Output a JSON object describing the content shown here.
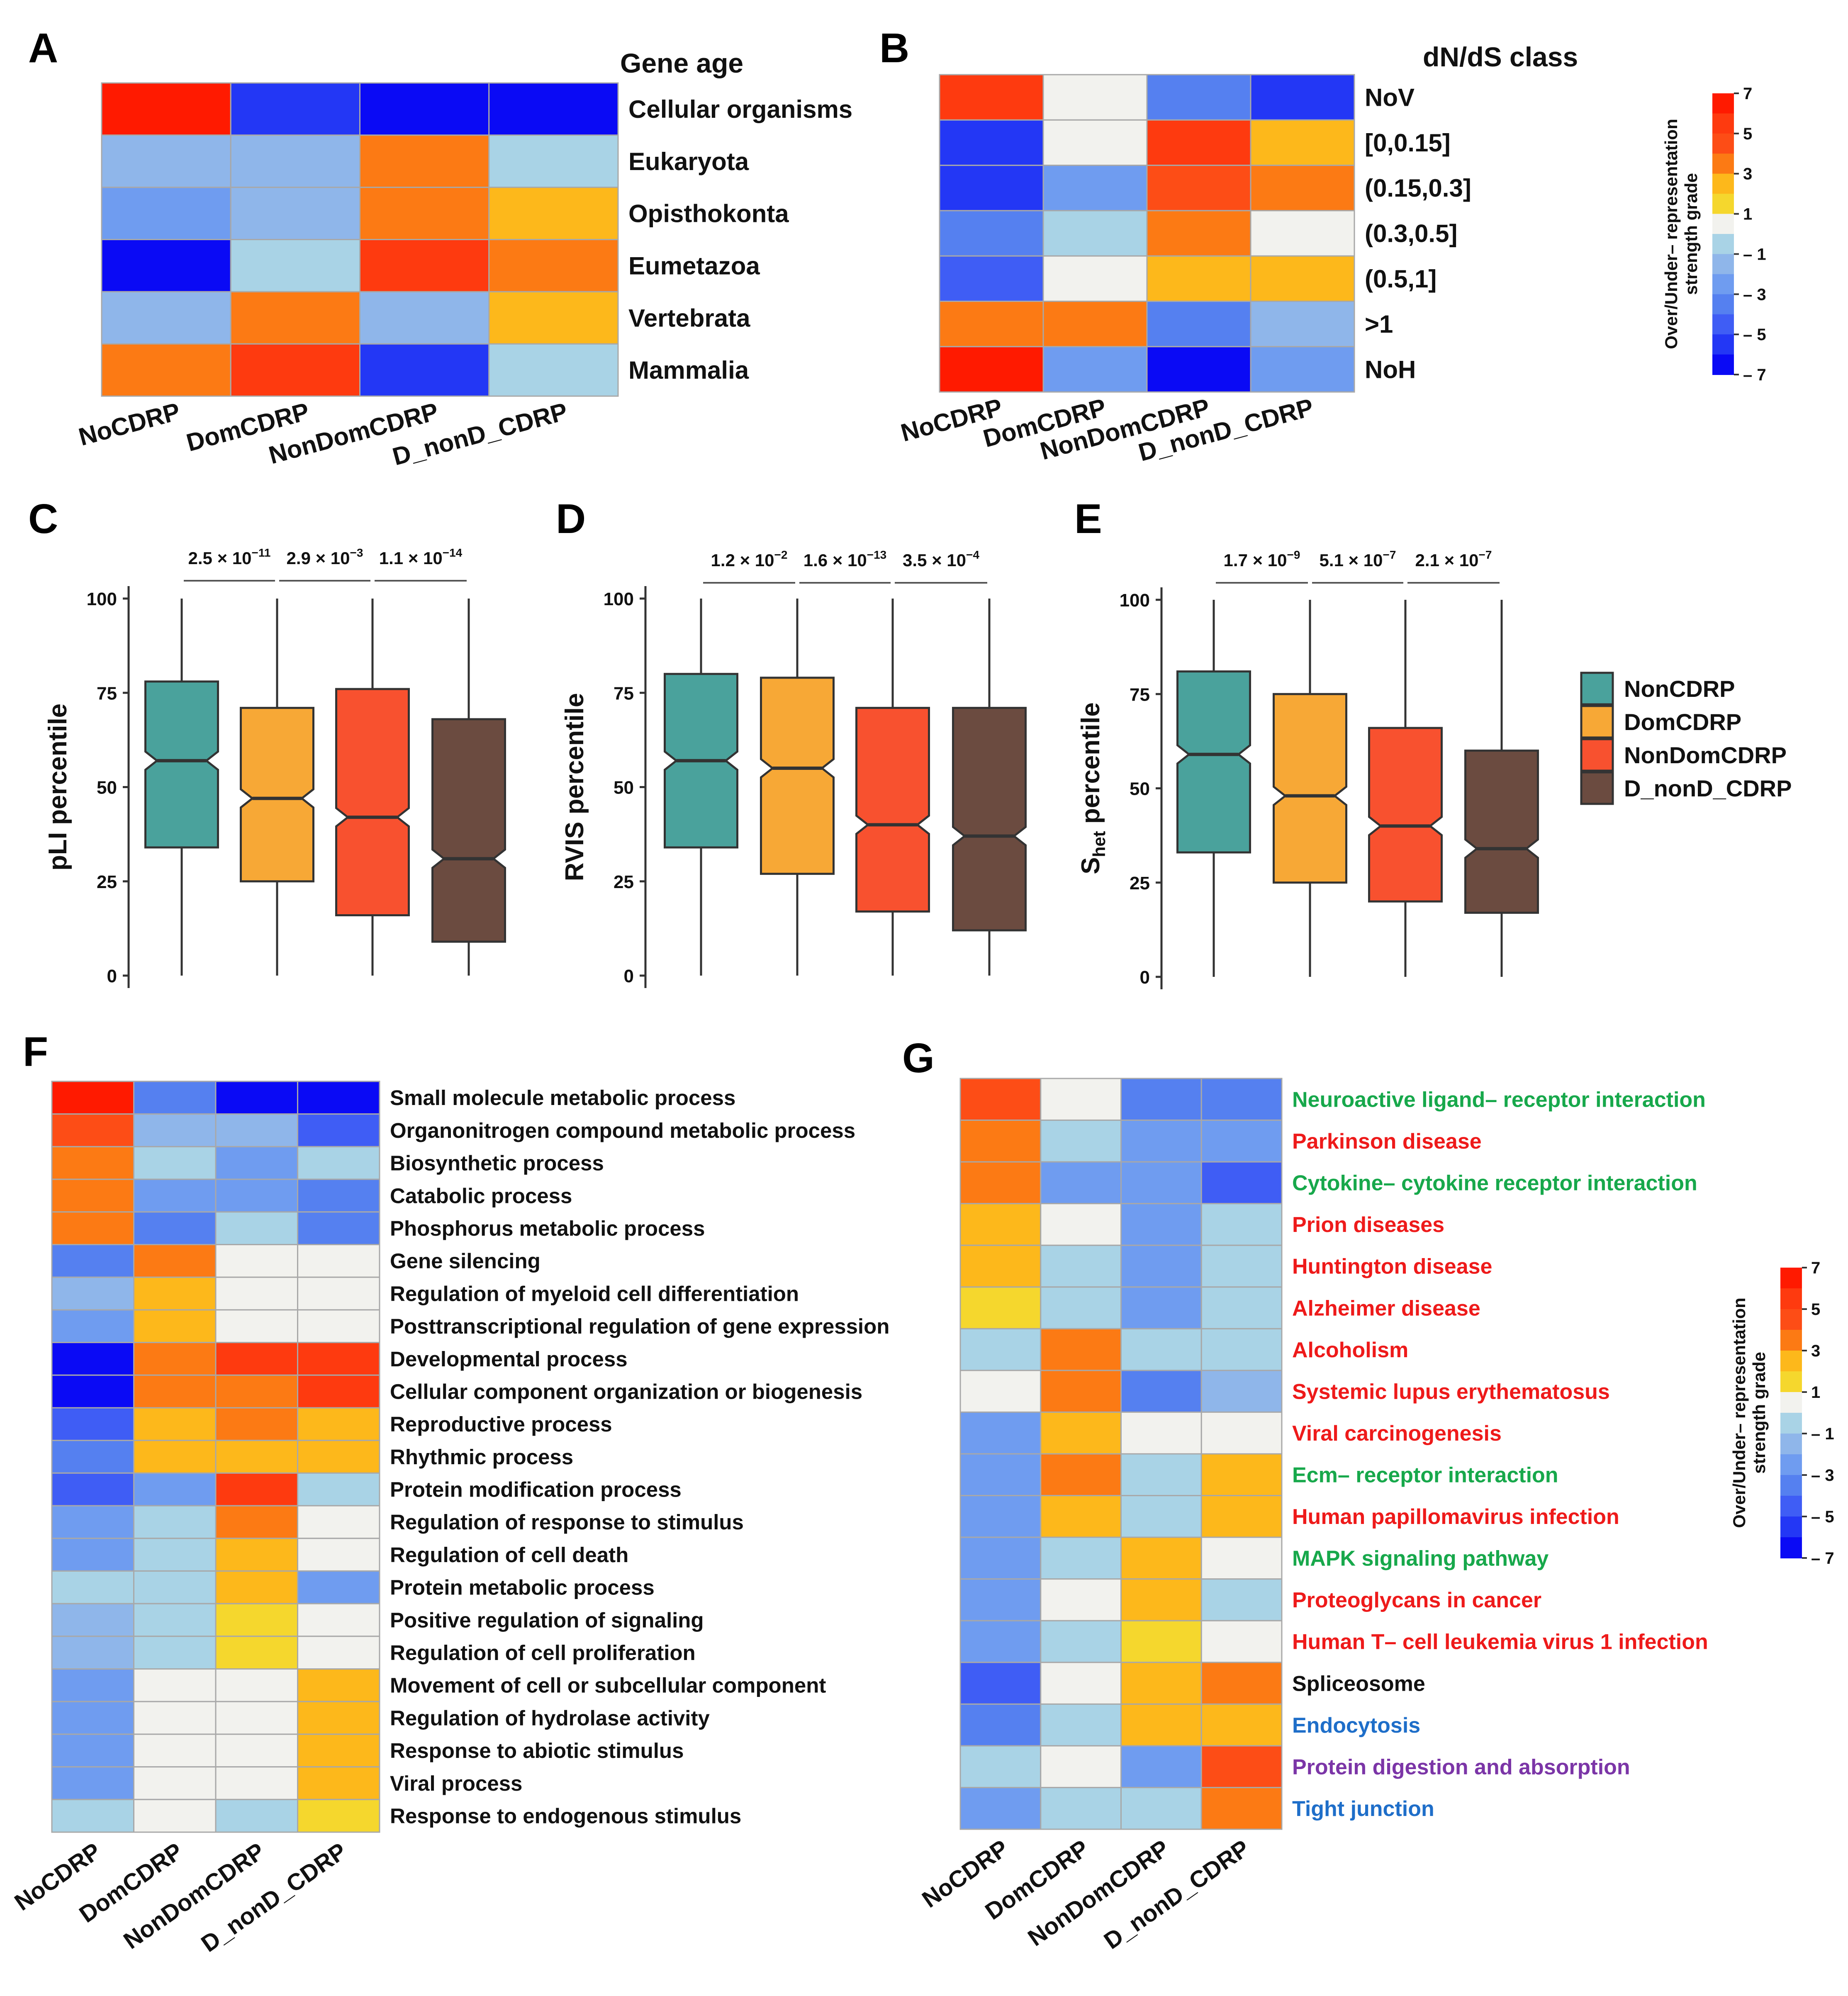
{
  "colors": {
    "grades": {
      "7": "#ff1a00",
      "6": "#fe3a0f",
      "5": "#fd4d16",
      "4": "#fc7a14",
      "3": "#fdb81b",
      "2": "#f5d72d",
      "1": "#f2f2ee",
      "-1": "#a9d3e6",
      "-2": "#8fb6ea",
      "-3": "#6f9cf0",
      "-4": "#5580f0",
      "-5": "#3f5df5",
      "-6": "#2337f5",
      "-7": "#0a0af5"
    },
    "cell_border": "#a8a8a8",
    "box_fills": [
      "#4aa29c",
      "#f7a836",
      "#f8512f",
      "#6b4b40"
    ],
    "pathway": {
      "green": "#17a84b",
      "red": "#ee1a1a",
      "black": "#111111",
      "blue": "#1e6ec9",
      "purple": "#7b35a7"
    }
  },
  "colorbar": {
    "title_lines": [
      "Over/Under– representation",
      "strength grade"
    ],
    "ticks": [
      "7",
      "5",
      "3",
      "1",
      "– 1",
      "– 3",
      "– 5",
      "– 7"
    ]
  },
  "chart_data": [
    {
      "panel": "A",
      "type": "heatmap",
      "title": "Gene age",
      "columns": [
        "NoCDRP",
        "DomCDRP",
        "NonDomCDRP",
        "D_nonD_CDRP"
      ],
      "rows": [
        "Cellular organisms",
        "Eukaryota",
        "Opisthokonta",
        "Eumetazoa",
        "Vertebrata",
        "Mammalia"
      ],
      "values": [
        [
          7,
          -6,
          -7,
          -7
        ],
        [
          -2,
          -2,
          4,
          -1
        ],
        [
          -3,
          -2,
          4,
          3
        ],
        [
          -7,
          -1,
          6,
          4
        ],
        [
          -2,
          4,
          -2,
          3
        ],
        [
          4,
          6,
          -6,
          -1
        ]
      ]
    },
    {
      "panel": "B",
      "type": "heatmap",
      "title": "dN/dS class",
      "columns": [
        "NoCDRP",
        "DomCDRP",
        "NonDomCDRP",
        "D_nonD_CDRP"
      ],
      "rows": [
        "NoV",
        "[0,0.15]",
        "(0.15,0.3]",
        "(0.3,0.5]",
        "(0.5,1]",
        ">1",
        "NoH"
      ],
      "values": [
        [
          6,
          1,
          -4,
          -6
        ],
        [
          -6,
          1,
          6,
          3
        ],
        [
          -6,
          -3,
          5,
          4
        ],
        [
          -4,
          -1,
          4,
          1
        ],
        [
          -5,
          1,
          3,
          3
        ],
        [
          4,
          4,
          -4,
          -2
        ],
        [
          7,
          -3,
          -7,
          -3
        ]
      ]
    },
    {
      "panel": "C",
      "type": "boxplot",
      "ylabel": "pLI percentile",
      "yticks": [
        "0",
        "25",
        "50",
        "75",
        "100"
      ],
      "ylim": [
        0,
        100
      ],
      "pvalues": [
        {
          "mantissa": "2.5 × 10",
          "exponent": "−11"
        },
        {
          "mantissa": "2.9 × 10",
          "exponent": "−3"
        },
        {
          "mantissa": "1.1 × 10",
          "exponent": "−14"
        }
      ],
      "boxes": [
        {
          "name": "NonCDRP",
          "min": 0,
          "q1": 34,
          "median": 57,
          "q3": 78,
          "max": 100
        },
        {
          "name": "DomCDRP",
          "min": 0,
          "q1": 25,
          "median": 47,
          "q3": 71,
          "max": 100
        },
        {
          "name": "NonDomCDRP",
          "min": 0,
          "q1": 16,
          "median": 42,
          "q3": 76,
          "max": 100
        },
        {
          "name": "D_nonD_CDRP",
          "min": 0,
          "q1": 9,
          "median": 31,
          "q3": 68,
          "max": 100
        }
      ]
    },
    {
      "panel": "D",
      "type": "boxplot",
      "ylabel": "RVIS percentile",
      "yticks": [
        "0",
        "25",
        "50",
        "75",
        "100"
      ],
      "ylim": [
        0,
        100
      ],
      "pvalues": [
        {
          "mantissa": "1.2 × 10",
          "exponent": "−2"
        },
        {
          "mantissa": "1.6 × 10",
          "exponent": "−13"
        },
        {
          "mantissa": "3.5 × 10",
          "exponent": "−4"
        }
      ],
      "boxes": [
        {
          "name": "NonCDRP",
          "min": 0,
          "q1": 34,
          "median": 57,
          "q3": 80,
          "max": 100
        },
        {
          "name": "DomCDRP",
          "min": 0,
          "q1": 27,
          "median": 55,
          "q3": 79,
          "max": 100
        },
        {
          "name": "NonDomCDRP",
          "min": 0,
          "q1": 17,
          "median": 40,
          "q3": 71,
          "max": 100
        },
        {
          "name": "D_nonD_CDRP",
          "min": 0,
          "q1": 12,
          "median": 37,
          "q3": 71,
          "max": 100
        }
      ]
    },
    {
      "panel": "E",
      "type": "boxplot",
      "ylabel_main": "S",
      "ylabel_sub": "het",
      "ylabel_rest": " percentile",
      "yticks": [
        "0",
        "25",
        "50",
        "75",
        "100"
      ],
      "ylim": [
        0,
        100
      ],
      "pvalues": [
        {
          "mantissa": "1.7 × 10",
          "exponent": "−9"
        },
        {
          "mantissa": "5.1 × 10",
          "exponent": "−7"
        },
        {
          "mantissa": "2.1 × 10",
          "exponent": "−7"
        }
      ],
      "boxes": [
        {
          "name": "NonCDRP",
          "min": 0,
          "q1": 33,
          "median": 59,
          "q3": 81,
          "max": 100
        },
        {
          "name": "DomCDRP",
          "min": 0,
          "q1": 25,
          "median": 48,
          "q3": 75,
          "max": 100
        },
        {
          "name": "NonDomCDRP",
          "min": 0,
          "q1": 20,
          "median": 40,
          "q3": 66,
          "max": 100
        },
        {
          "name": "D_nonD_CDRP",
          "min": 0,
          "q1": 17,
          "median": 34,
          "q3": 60,
          "max": 100
        }
      ],
      "legend": [
        "NonCDRP",
        "DomCDRP",
        "NonDomCDRP",
        "D_nonD_CDRP"
      ]
    },
    {
      "panel": "F",
      "type": "heatmap",
      "columns": [
        "NoCDRP",
        "DomCDRP",
        "NonDomCDRP",
        "D_nonD_CDRP"
      ],
      "rows": [
        "Small molecule metabolic process",
        "Organonitrogen compound metabolic process",
        "Biosynthetic process",
        "Catabolic process",
        "Phosphorus metabolic process",
        "Gene silencing",
        "Regulation of myeloid cell differentiation",
        "Posttranscriptional regulation of gene expression",
        "Developmental process",
        "Cellular component organization or biogenesis",
        "Reproductive process",
        "Rhythmic process",
        "Protein modification process",
        "Regulation of response to stimulus",
        "Regulation of cell death",
        "Protein metabolic process",
        "Positive regulation of signaling",
        "Regulation of cell proliferation",
        "Movement of cell or subcellular component",
        "Regulation of hydrolase activity",
        "Response to abiotic stimulus",
        "Viral process",
        "Response to endogenous stimulus"
      ],
      "values": [
        [
          7,
          -4,
          -7,
          -7
        ],
        [
          5,
          -2,
          -2,
          -5
        ],
        [
          4,
          -1,
          -3,
          -1
        ],
        [
          4,
          -3,
          -3,
          -4
        ],
        [
          4,
          -4,
          -1,
          -4
        ],
        [
          -4,
          4,
          1,
          1
        ],
        [
          -2,
          3,
          1,
          1
        ],
        [
          -3,
          3,
          1,
          1
        ],
        [
          -7,
          4,
          6,
          6
        ],
        [
          -7,
          4,
          4,
          6
        ],
        [
          -5,
          3,
          4,
          3
        ],
        [
          -4,
          3,
          3,
          3
        ],
        [
          -5,
          -3,
          6,
          -1
        ],
        [
          -3,
          -1,
          4,
          1
        ],
        [
          -3,
          -1,
          3,
          1
        ],
        [
          -1,
          -1,
          3,
          -3
        ],
        [
          -2,
          -1,
          2,
          1
        ],
        [
          -2,
          -1,
          2,
          1
        ],
        [
          -3,
          1,
          1,
          3
        ],
        [
          -3,
          1,
          1,
          3
        ],
        [
          -3,
          1,
          1,
          3
        ],
        [
          -3,
          1,
          1,
          3
        ],
        [
          -1,
          1,
          -1,
          2
        ]
      ]
    },
    {
      "panel": "G",
      "type": "heatmap",
      "columns": [
        "NoCDRP",
        "DomCDRP",
        "NonDomCDRP",
        "D_nonD_CDRP"
      ],
      "rows": [
        {
          "label": "Neuroactive ligand– receptor interaction",
          "color": "green"
        },
        {
          "label": "Parkinson disease",
          "color": "red"
        },
        {
          "label": "Cytokine– cytokine receptor interaction",
          "color": "green"
        },
        {
          "label": "Prion diseases",
          "color": "red"
        },
        {
          "label": "Huntington disease",
          "color": "red"
        },
        {
          "label": "Alzheimer disease",
          "color": "red"
        },
        {
          "label": "Alcoholism",
          "color": "red"
        },
        {
          "label": "Systemic lupus erythematosus",
          "color": "red"
        },
        {
          "label": "Viral carcinogenesis",
          "color": "red"
        },
        {
          "label": "Ecm– receptor interaction",
          "color": "green"
        },
        {
          "label": "Human papillomavirus infection",
          "color": "red"
        },
        {
          "label": "MAPK signaling pathway",
          "color": "green"
        },
        {
          "label": "Proteoglycans in cancer",
          "color": "red"
        },
        {
          "label": "Human T– cell leukemia virus 1 infection",
          "color": "red"
        },
        {
          "label": "Spliceosome",
          "color": "black"
        },
        {
          "label": "Endocytosis",
          "color": "blue"
        },
        {
          "label": "Protein digestion and absorption",
          "color": "purple"
        },
        {
          "label": "Tight junction",
          "color": "blue"
        }
      ],
      "values": [
        [
          5,
          1,
          -4,
          -4
        ],
        [
          4,
          -1,
          -3,
          -3
        ],
        [
          4,
          -3,
          -3,
          -5
        ],
        [
          3,
          1,
          -3,
          -1
        ],
        [
          3,
          -1,
          -3,
          -1
        ],
        [
          2,
          -1,
          -3,
          -1
        ],
        [
          -1,
          4,
          -1,
          -1
        ],
        [
          1,
          4,
          -4,
          -2
        ],
        [
          -3,
          3,
          1,
          1
        ],
        [
          -3,
          4,
          -1,
          3
        ],
        [
          -3,
          3,
          -1,
          3
        ],
        [
          -3,
          -1,
          3,
          1
        ],
        [
          -3,
          1,
          3,
          -1
        ],
        [
          -3,
          -1,
          2,
          1
        ],
        [
          -5,
          1,
          3,
          4
        ],
        [
          -4,
          -1,
          3,
          3
        ],
        [
          -1,
          1,
          -3,
          5
        ],
        [
          -3,
          -1,
          -1,
          4
        ]
      ]
    }
  ],
  "panel_letters": [
    "A",
    "B",
    "C",
    "D",
    "E",
    "F",
    "G"
  ]
}
